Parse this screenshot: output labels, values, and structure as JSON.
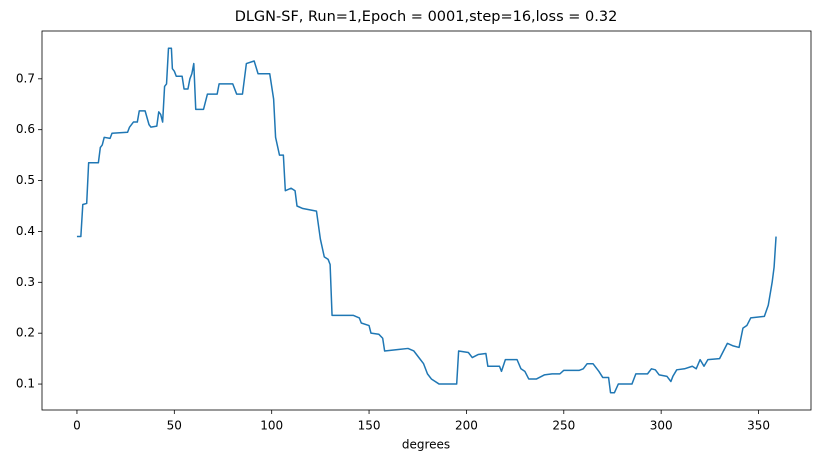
{
  "chart_data": {
    "type": "line",
    "title": "DLGN-SF, Run=1,Epoch = 0001,step=16,loss = 0.32",
    "xlabel": "degrees",
    "color": "#1f77b4",
    "x": [
      0,
      2,
      3,
      5,
      6,
      11,
      12,
      13,
      14,
      17,
      18,
      26,
      27,
      29,
      31,
      32,
      35,
      37,
      38,
      41,
      42,
      43,
      44,
      45,
      46,
      47,
      48.5,
      49,
      50,
      51,
      54,
      55,
      57,
      58,
      59,
      60,
      61,
      65,
      67,
      72,
      73,
      80,
      82,
      85,
      87,
      91,
      93,
      99,
      101,
      102,
      104,
      106,
      107,
      110,
      112,
      113,
      116,
      123,
      125,
      127,
      129,
      130,
      131,
      142,
      145,
      146,
      150,
      151,
      155,
      157,
      158,
      165,
      170,
      173,
      176,
      178,
      180,
      182,
      186,
      195,
      196,
      201,
      203,
      206,
      210,
      211,
      217,
      218,
      220,
      226,
      228,
      230,
      232,
      236,
      240,
      244,
      248,
      250,
      258,
      260,
      262,
      265,
      268,
      270,
      273,
      274,
      276,
      278,
      285,
      287,
      293,
      295,
      297,
      299,
      303,
      305,
      306,
      308,
      312,
      316,
      318,
      320,
      322,
      324,
      330,
      334,
      337,
      340,
      342,
      344,
      346,
      353,
      355,
      357,
      358,
      359
    ],
    "values": [
      0.39,
      0.39,
      0.453,
      0.455,
      0.535,
      0.535,
      0.565,
      0.57,
      0.585,
      0.583,
      0.593,
      0.595,
      0.605,
      0.615,
      0.615,
      0.637,
      0.637,
      0.61,
      0.605,
      0.607,
      0.635,
      0.63,
      0.615,
      0.685,
      0.69,
      0.76,
      0.76,
      0.72,
      0.715,
      0.705,
      0.705,
      0.68,
      0.68,
      0.7,
      0.71,
      0.73,
      0.64,
      0.64,
      0.67,
      0.67,
      0.69,
      0.69,
      0.67,
      0.67,
      0.73,
      0.735,
      0.71,
      0.71,
      0.66,
      0.585,
      0.55,
      0.55,
      0.48,
      0.485,
      0.48,
      0.45,
      0.445,
      0.44,
      0.385,
      0.35,
      0.345,
      0.335,
      0.235,
      0.235,
      0.23,
      0.22,
      0.215,
      0.2,
      0.198,
      0.19,
      0.165,
      0.168,
      0.17,
      0.165,
      0.15,
      0.14,
      0.12,
      0.11,
      0.1,
      0.1,
      0.165,
      0.162,
      0.152,
      0.158,
      0.16,
      0.135,
      0.135,
      0.125,
      0.148,
      0.148,
      0.13,
      0.125,
      0.11,
      0.11,
      0.118,
      0.12,
      0.12,
      0.127,
      0.127,
      0.13,
      0.14,
      0.14,
      0.125,
      0.113,
      0.113,
      0.083,
      0.083,
      0.1,
      0.1,
      0.12,
      0.12,
      0.13,
      0.128,
      0.118,
      0.115,
      0.105,
      0.115,
      0.128,
      0.13,
      0.135,
      0.13,
      0.148,
      0.135,
      0.148,
      0.15,
      0.18,
      0.175,
      0.172,
      0.21,
      0.215,
      0.23,
      0.233,
      0.255,
      0.3,
      0.33,
      0.39
    ],
    "xlim": [
      -17.95,
      376.95
    ],
    "ylim": [
      0.049,
      0.794
    ],
    "xticks": [
      0,
      50,
      100,
      150,
      200,
      250,
      300,
      350
    ],
    "yticks": [
      0.1,
      0.2,
      0.3,
      0.4,
      0.5,
      0.6,
      0.7
    ]
  }
}
